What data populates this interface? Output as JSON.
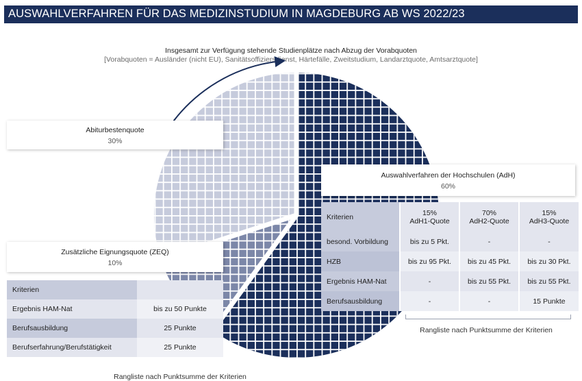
{
  "header": {
    "title": "AUSWAHLVERFAHREN FÜR DAS MEDIZINSTUDIUM IN MAGDEBURG AB WS 2022/23"
  },
  "subtitle": {
    "line1": "Insgesamt zur Verfügung stehende Studienplätze nach Abzug der Vorabquoten",
    "line2": "[Vorabquoten = Ausländer (nicht EU), Sanitätsoffiziersdienst, Härtefälle, Zweitstudium, Landarztquote, Amtsarztquote]"
  },
  "chart_data": {
    "type": "pie",
    "slices": [
      {
        "name": "Auswahlverfahren der Hochschulen (AdH)",
        "value": 60,
        "color": "#1b2f5b"
      },
      {
        "name": "Zusätzliche Eignungsquote (ZEQ)",
        "value": 10,
        "color": "#7c87a8"
      },
      {
        "name": "Abiturbestenquote",
        "value": 30,
        "color": "#c6cbdc"
      }
    ],
    "start": "12 o'clock, clockwise"
  },
  "boxes": {
    "abitur": {
      "name": "Abiturbestenquote",
      "pct": "30%"
    },
    "zeq": {
      "name": "Zusätzliche Eignungsquote (ZEQ)",
      "pct": "10%"
    },
    "adh": {
      "name": "Auswahlverfahren  der Hochschulen (AdH)",
      "pct": "60%"
    }
  },
  "zeq_table": {
    "header": "Kriterien",
    "rows": [
      {
        "label": "Ergebnis HAM-Nat",
        "value": "bis zu 50 Punkte"
      },
      {
        "label": "Berufsausbildung",
        "value": "25 Punkte"
      },
      {
        "label": "Berufserfahrung/Berufstätigkeit",
        "value": "25 Punkte"
      }
    ],
    "footer": "Rangliste nach Punktsumme der Kriterien"
  },
  "adh_table": {
    "header": "Kriterien",
    "quotas": [
      {
        "pct": "15%",
        "name": "AdH1-Quote"
      },
      {
        "pct": "70%",
        "name": "AdH2-Quote"
      },
      {
        "pct": "15%",
        "name": "AdH3-Quote"
      }
    ],
    "rows": [
      {
        "label": "besond. Vorbildung",
        "values": [
          "bis zu 5 Pkt.",
          "-",
          "-"
        ]
      },
      {
        "label": "HZB",
        "values": [
          "bis zu 95 Pkt.",
          "bis zu 45 Pkt.",
          "bis zu 30 Pkt."
        ]
      },
      {
        "label": "Ergebnis HAM-Nat",
        "values": [
          "-",
          "bis zu 55 Pkt.",
          "bis zu 55 Pkt."
        ]
      },
      {
        "label": "Berufsausbildung",
        "values": [
          "-",
          "-",
          "15 Punkte"
        ]
      }
    ],
    "footer": "Rangliste nach Punktsumme der Kriterien"
  }
}
